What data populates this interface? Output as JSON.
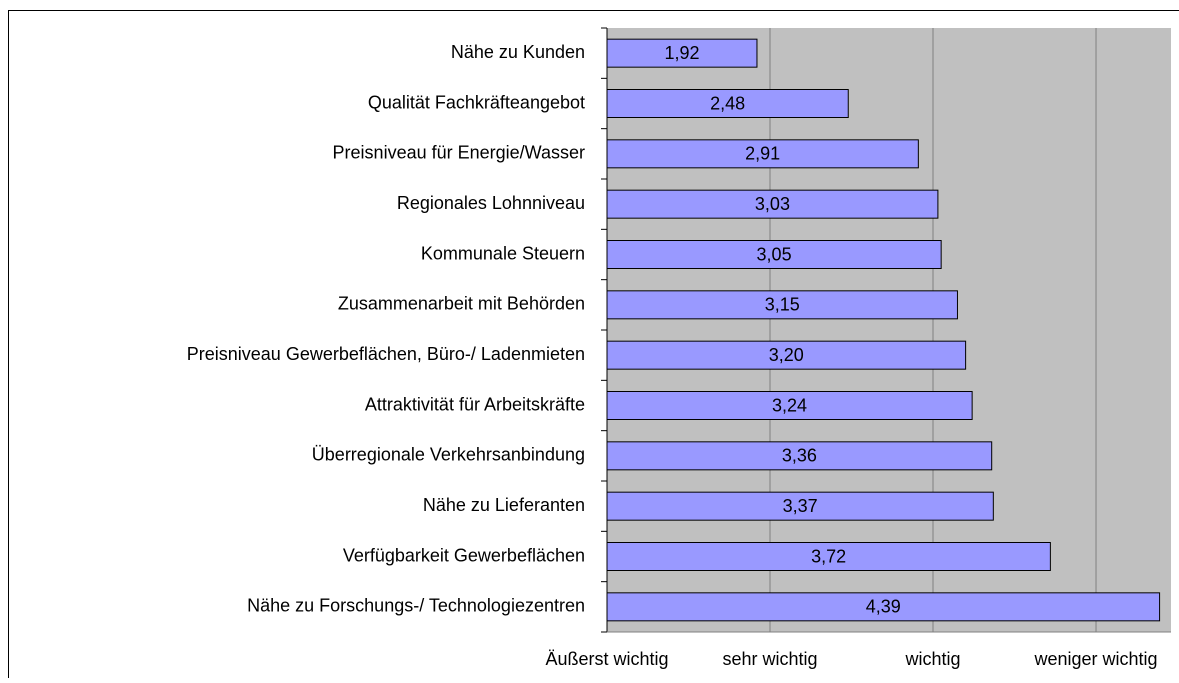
{
  "chart_data": {
    "type": "bar",
    "orientation": "horizontal",
    "categories": [
      "Nähe zu Kunden",
      "Qualität Fachkräfteangebot",
      "Preisniveau für Energie/Wasser",
      "Regionales Lohnniveau",
      "Kommunale Steuern",
      "Zusammenarbeit mit Behörden",
      "Preisniveau Gewerbeflächen, Büro-/ Ladenmieten",
      "Attraktivität für Arbeitskräfte",
      "Überregionale Verkehrsanbindung",
      "Nähe zu Lieferanten",
      "Verfügbarkeit Gewerbeflächen",
      "Nähe zu Forschungs-/ Technologiezentren"
    ],
    "values": [
      1.92,
      2.48,
      2.91,
      3.03,
      3.05,
      3.15,
      3.2,
      3.24,
      3.36,
      3.37,
      3.72,
      4.39
    ],
    "value_labels": [
      "1,92",
      "2,48",
      "2,91",
      "3,03",
      "3,05",
      "3,15",
      "3,20",
      "3,24",
      "3,36",
      "3,37",
      "3,72",
      "4,39"
    ],
    "color": "#9999ff",
    "xlim": [
      1,
      4.46
    ],
    "xticks": [
      {
        "value": 1,
        "label": "Äußerst wichtig"
      },
      {
        "value": 2,
        "label": "sehr wichtig"
      },
      {
        "value": 3,
        "label": "wichtig"
      },
      {
        "value": 4,
        "label": "weniger wichtig"
      }
    ],
    "grid": true
  }
}
